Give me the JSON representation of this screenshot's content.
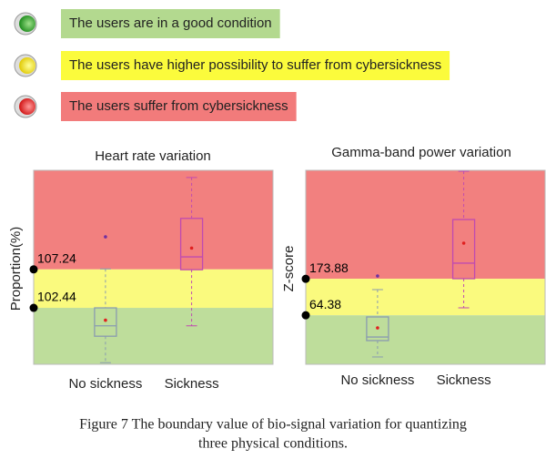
{
  "legend": [
    {
      "text": "The users are in a good condition",
      "color": "#b3d98f"
    },
    {
      "text": "The users have higher possibility to suffer from cybersickness",
      "color": "#fbfb3c"
    },
    {
      "text": "The users suffer from cybersickness",
      "color": "#f27b7b"
    }
  ],
  "chart_data": [
    {
      "type": "box",
      "title": "Heart rate variation",
      "ylabel": "Proportion(%)",
      "categories": [
        "No sickness",
        "Sickness"
      ],
      "colors": [
        "#8a9bb0",
        "#c04ab0"
      ],
      "ylim": [
        95.4,
        119.6
      ],
      "thresholds": [
        107.24,
        102.44
      ],
      "band_colors": [
        "#f2807f",
        "#fafa7e",
        "#bedd9b"
      ],
      "boxes": [
        {
          "whisker_low": 95.6,
          "q1": 98.9,
          "median": 100.2,
          "q3": 102.44,
          "whisker_high": 107.3,
          "mean": 100.9,
          "outliers": [
            111.3
          ]
        },
        {
          "whisker_low": 100.2,
          "q1": 107.2,
          "median": 108.8,
          "q3": 113.6,
          "whisker_high": 118.7,
          "mean": 109.9,
          "outliers": []
        }
      ]
    },
    {
      "type": "box",
      "title": "Gamma-band power variation",
      "ylabel": "Z-score",
      "categories": [
        "No sickness",
        "Sickness"
      ],
      "colors": [
        "#8a9bb0",
        "#c04ab0"
      ],
      "ylim": [
        -83,
        500
      ],
      "thresholds": [
        173.88,
        64.38
      ],
      "band_colors": [
        "#f2807f",
        "#fafa7e",
        "#bedd9b"
      ],
      "boxes": [
        {
          "whisker_low": -61,
          "q1": -11.8,
          "median": -1,
          "q3": 59.3,
          "whisker_high": 141.4,
          "mean": 26.5,
          "outliers": [
            182.5
          ]
        },
        {
          "whisker_low": 86.7,
          "q1": 174.3,
          "median": 221,
          "q3": 352,
          "whisker_high": 497,
          "mean": 281,
          "outliers": []
        }
      ]
    }
  ],
  "caption": [
    "Figure 7 The boundary value of bio-signal variation for quantizing",
    "three physical conditions."
  ]
}
